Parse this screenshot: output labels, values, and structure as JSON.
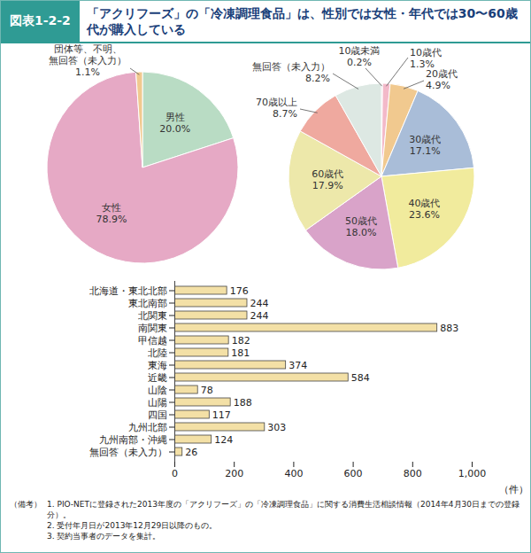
{
  "figure_label": "図表1-2-2",
  "title": "「アクリフーズ」の「冷凍調理食品」は、性別では女性・年代では30〜60歳代が購入している",
  "chart_data": [
    {
      "type": "pie",
      "categories": [
        "男性",
        "女性",
        "団体等、不明、\n無回答（未入力）"
      ],
      "values": [
        20.0,
        78.9,
        1.1
      ],
      "value_labels": [
        "20.0%",
        "78.9%",
        "1.1%"
      ],
      "colors": [
        "#b9dcc4",
        "#e6a9c5",
        "#f1c98f"
      ],
      "data_labels": true
    },
    {
      "type": "pie",
      "categories": [
        "10歳未満",
        "10歳代",
        "20歳代",
        "30歳代",
        "40歳代",
        "50歳代",
        "60歳代",
        "70歳以上",
        "無回答（未入力）"
      ],
      "values": [
        0.2,
        1.3,
        4.9,
        17.1,
        23.6,
        18.0,
        17.9,
        8.7,
        8.2
      ],
      "value_labels": [
        "0.2%",
        "1.3%",
        "4.9%",
        "17.1%",
        "23.6%",
        "18.0%",
        "17.9%",
        "8.7%",
        "8.2%"
      ],
      "colors": [
        "#e79bb5",
        "#f3b9c9",
        "#f1c98f",
        "#a9bdd8",
        "#f1eb9d",
        "#d9a3c9",
        "#ede8aa",
        "#efa99f",
        "#dde8e3"
      ],
      "data_labels": true
    },
    {
      "type": "bar",
      "orientation": "horizontal",
      "categories": [
        "北海道・東北北部",
        "東北南部",
        "北関東",
        "南関東",
        "甲信越",
        "北陸",
        "東海",
        "近畿",
        "山陰",
        "山陽",
        "四国",
        "九州北部",
        "九州南部・沖縄",
        "無回答（未入力）"
      ],
      "values": [
        176,
        244,
        244,
        883,
        182,
        181,
        374,
        584,
        78,
        188,
        117,
        303,
        124,
        26
      ],
      "color": "#f3e0a6",
      "x_label": "（件）",
      "xlim": [
        0,
        1000
      ],
      "xticks": [
        0,
        200,
        400,
        600,
        800,
        {
          "value": 1000,
          "label": "1,000"
        }
      ],
      "data_labels": true
    }
  ],
  "notes": {
    "label": "（備考）",
    "items": [
      "1. PIO-NETに登録された2013年度の「アクリフーズ」の「冷凍調理食品」に関する消費生活相談情報（2014年4月30日までの登録分）。",
      "2. 受付年月日が2013年12月29日以降のもの。",
      "3. 契約当事者のデータを集計。"
    ]
  }
}
